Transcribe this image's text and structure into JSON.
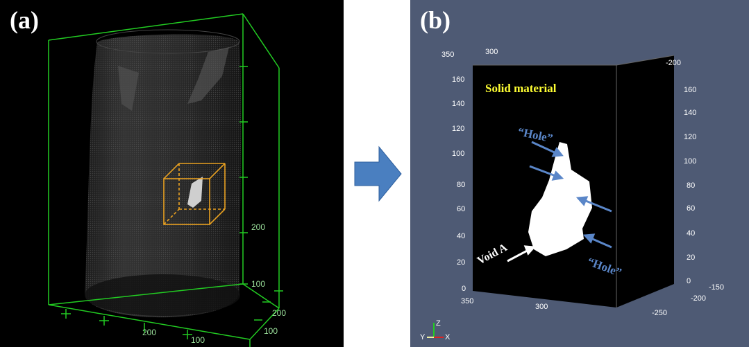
{
  "panel_a": {
    "label": "(a)",
    "axis_ticks": [
      "200",
      "100",
      "200",
      "100",
      "200",
      "100"
    ],
    "colors": {
      "bbox": "#22cc22",
      "roi_box": "#e8a020",
      "background": "#000000"
    }
  },
  "arrow": {
    "color": "#4a7fc0",
    "icon": "right-arrow-icon"
  },
  "panel_b": {
    "label": "(b)",
    "solid_material": "Solid material",
    "hole_top": "“Hole”",
    "hole_bottom": "“Hole”",
    "void_a": "Void A",
    "left_ticks": [
      "160",
      "140",
      "120",
      "100",
      "80",
      "60",
      "40",
      "20",
      "0"
    ],
    "right_ticks": [
      "160",
      "140",
      "120",
      "100",
      "80",
      "60",
      "40",
      "20",
      "0"
    ],
    "top_ticks": [
      "350",
      "300",
      "-200"
    ],
    "bottom_ticks": [
      "350",
      "300"
    ],
    "right_bottom_ticks": [
      "-150",
      "-200",
      "-250"
    ],
    "triad": {
      "z": "Z",
      "y": "Y",
      "x": "X"
    },
    "colors": {
      "background": "#4e5a74",
      "annotation_yellow": "#ffff33",
      "arrow_blue": "#5a86c8"
    }
  }
}
